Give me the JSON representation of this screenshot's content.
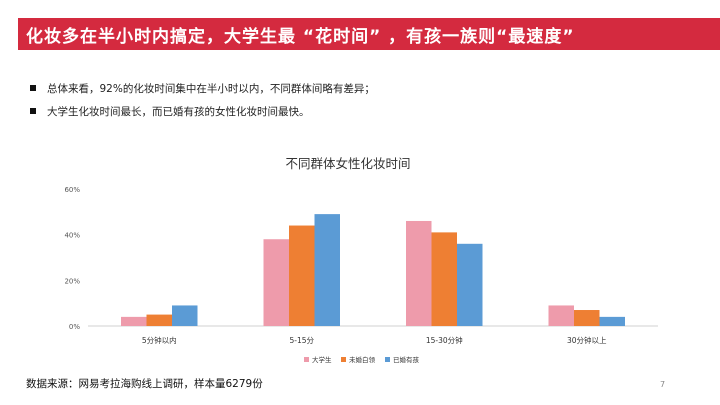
{
  "slide": {
    "title": "化妆多在半小时内搞定，大学生最 “花时间” ，有孩一族则“最速度”",
    "bullets": [
      "总体来看，92%的化妆时间集中在半小时以内，不同群体间略有差异；",
      "大学生化妆时间最长，而已婚有孩的女性化妆时间最快。"
    ],
    "source": "数据来源：网易考拉海购线上调研，样本量6279份",
    "page_number": "7"
  },
  "chart_data": {
    "type": "bar",
    "title": "不同群体女性化妆时间",
    "categories": [
      "5分钟以内",
      "5-15分",
      "15-30分钟",
      "30分钟以上"
    ],
    "series": [
      {
        "name": "大学生",
        "color": "#ee9bab",
        "values": [
          4,
          38,
          46,
          9
        ]
      },
      {
        "name": "未婚白领",
        "color": "#ee7f33",
        "values": [
          5,
          44,
          41,
          7
        ]
      },
      {
        "name": "已婚有孩",
        "color": "#5b9bd5",
        "values": [
          9,
          49,
          36,
          4
        ]
      }
    ],
    "ylim": [
      0,
      60
    ],
    "yticks": [
      "0%",
      "20%",
      "40%",
      "60%"
    ],
    "legend_position": "bottom",
    "grid": false
  }
}
